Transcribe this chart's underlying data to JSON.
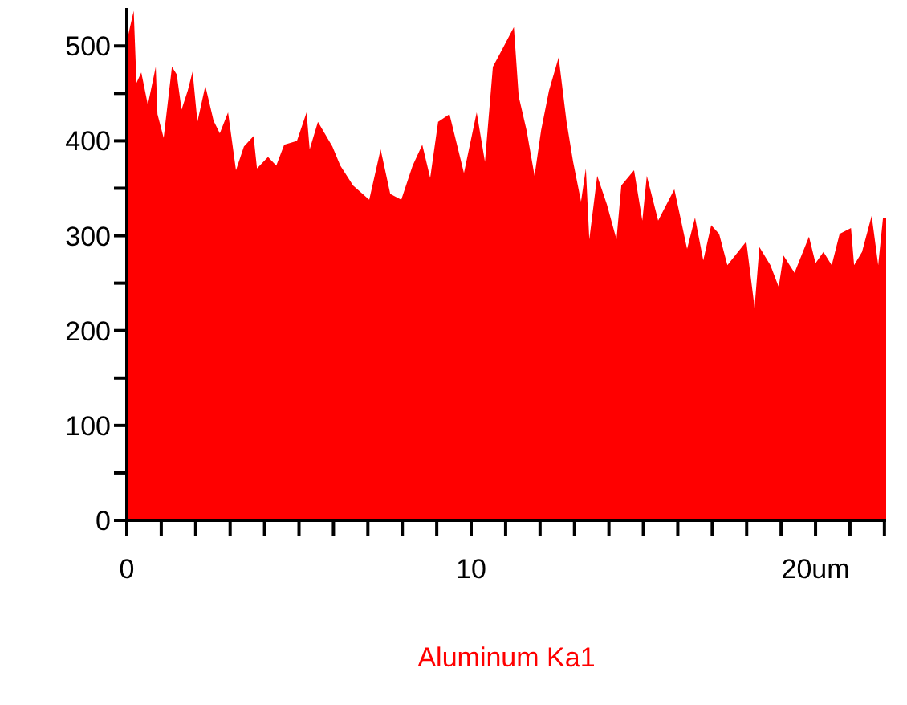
{
  "chart_data": {
    "type": "area",
    "xlabel": "Aluminum Ka1",
    "color": "#ff0000",
    "x": [
      0,
      0.2,
      0.28,
      0.42,
      0.61,
      0.84,
      0.89,
      1.07,
      1.31,
      1.45,
      1.59,
      1.77,
      1.91,
      2.05,
      2.28,
      2.52,
      2.7,
      2.94,
      3.17,
      3.4,
      3.68,
      3.78,
      4.1,
      4.34,
      4.57,
      4.94,
      5.22,
      5.31,
      5.55,
      5.97,
      6.2,
      6.57,
      7.04,
      7.37,
      7.65,
      7.97,
      8.3,
      8.58,
      8.81,
      9.04,
      9.37,
      9.79,
      10.16,
      10.4,
      10.63,
      10.91,
      11.24,
      11.38,
      11.61,
      11.84,
      12.03,
      12.26,
      12.54,
      12.77,
      12.96,
      13.19,
      13.33,
      13.43,
      13.66,
      13.94,
      14.22,
      14.36,
      14.73,
      14.97,
      15.1,
      15.43,
      15.9,
      16.27,
      16.5,
      16.74,
      16.97,
      17.2,
      17.44,
      17.99,
      18.23,
      18.37,
      18.69,
      18.93,
      19.07,
      19.39,
      19.81,
      20,
      20.23,
      20.47,
      20.7,
      21.03,
      21.12,
      21.35,
      21.63,
      21.82,
      21.96,
      22.05
    ],
    "values": [
      505,
      537,
      461,
      472,
      438,
      478,
      428,
      403,
      478,
      470,
      433,
      453,
      473,
      420,
      458,
      421,
      408,
      430,
      369,
      394,
      405,
      371,
      383,
      374,
      396,
      400,
      430,
      391,
      420,
      394,
      374,
      353,
      338,
      391,
      344,
      338,
      374,
      396,
      361,
      420,
      428,
      366,
      430,
      378,
      478,
      497,
      520,
      447,
      411,
      363,
      411,
      453,
      488,
      420,
      378,
      336,
      371,
      296,
      363,
      333,
      296,
      353,
      369,
      316,
      363,
      316,
      349,
      286,
      319,
      274,
      311,
      302,
      269,
      294,
      224,
      288,
      269,
      246,
      279,
      261,
      299,
      271,
      283,
      269,
      302,
      308,
      269,
      283,
      321,
      269,
      319,
      319
    ],
    "xlim": [
      0,
      22.05
    ],
    "xticks": [
      0,
      {
        "value": 1,
        "label": null
      },
      {
        "value": 2,
        "label": null
      },
      {
        "value": 3,
        "label": null
      },
      {
        "value": 4,
        "label": null
      },
      {
        "value": 5,
        "label": null
      },
      {
        "value": 6,
        "label": null
      },
      {
        "value": 7,
        "label": null
      },
      {
        "value": 8,
        "label": null
      },
      {
        "value": 9,
        "label": null
      },
      10,
      {
        "value": 11,
        "label": null
      },
      {
        "value": 12,
        "label": null
      },
      {
        "value": 13,
        "label": null
      },
      {
        "value": 14,
        "label": null
      },
      {
        "value": 15,
        "label": null
      },
      {
        "value": 16,
        "label": null
      },
      {
        "value": 17,
        "label": null
      },
      {
        "value": 18,
        "label": null
      },
      {
        "value": 19,
        "label": null
      },
      {
        "value": 20,
        "label": "20um"
      },
      {
        "value": 21,
        "label": null
      },
      {
        "value": 22,
        "label": null
      }
    ],
    "ylim": [
      0,
      540
    ],
    "yticks": [
      0,
      {
        "value": 50,
        "label": null
      },
      100,
      {
        "value": 150,
        "label": null
      },
      200,
      {
        "value": 250,
        "label": null
      },
      300,
      {
        "value": 350,
        "label": null
      },
      400,
      {
        "value": 450,
        "label": null
      },
      500
    ],
    "grid": false
  }
}
